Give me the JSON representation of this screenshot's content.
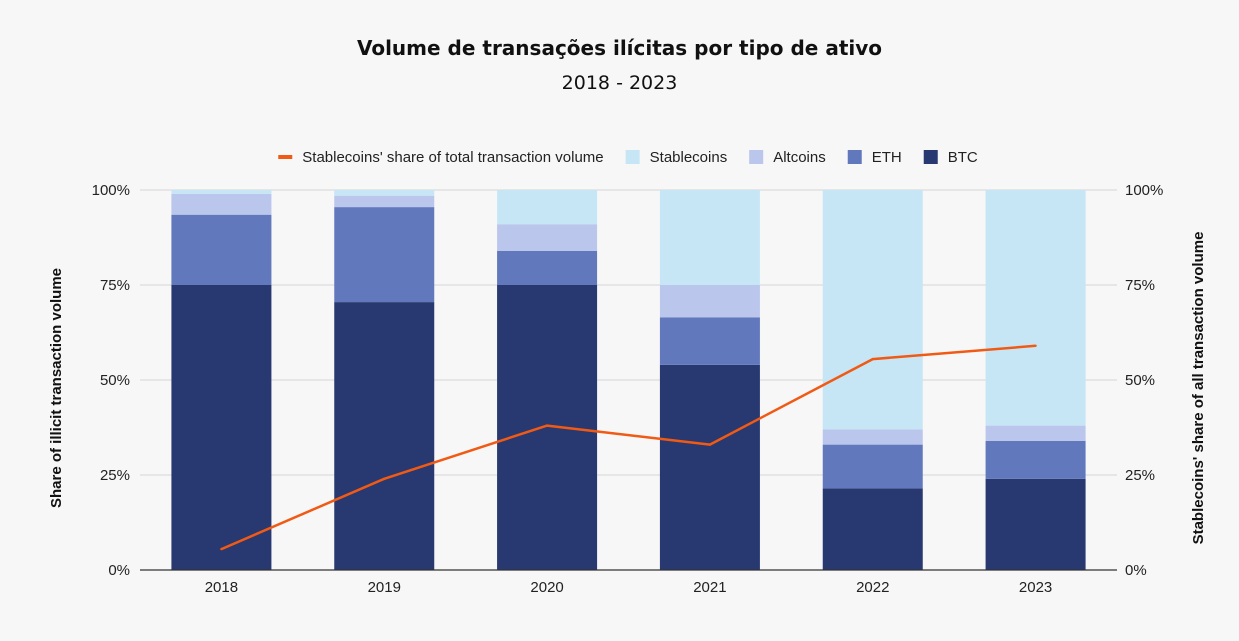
{
  "chart_data": {
    "type": "bar",
    "stacked": true,
    "title": "Volume de transações ilícitas por tipo de ativo",
    "subtitle": "2018 - 2023",
    "categories": [
      "2018",
      "2019",
      "2020",
      "2021",
      "2022",
      "2023"
    ],
    "series": [
      {
        "name": "BTC",
        "color": "#283870",
        "values": [
          75,
          70.5,
          75,
          54,
          21.5,
          24
        ]
      },
      {
        "name": "ETH",
        "color": "#6178bd",
        "values": [
          18.5,
          25,
          9,
          12.5,
          11.5,
          10
        ]
      },
      {
        "name": "Altcoins",
        "color": "#bac6ec",
        "values": [
          5.5,
          3,
          7,
          8.5,
          4,
          4
        ]
      },
      {
        "name": "Stablecoins",
        "color": "#c6e6f5",
        "values": [
          1,
          1.5,
          9,
          25,
          63,
          62
        ]
      }
    ],
    "line_series": {
      "name": "Stablecoins' share of total transaction volume",
      "color": "#f05a14",
      "axis": "right",
      "values": [
        5.5,
        24,
        38,
        33,
        55.5,
        59
      ]
    },
    "ylabel": "Share of illicit transaction volume",
    "ylabel_right": "Stablecoins' share of all transaction volume",
    "ylim": [
      0,
      100
    ],
    "yticks": [
      "0%",
      "25%",
      "50%",
      "75%",
      "100%"
    ],
    "yticks_right": [
      "0%",
      "25%",
      "50%",
      "75%",
      "100%"
    ],
    "grid": true,
    "legend_placement": "top"
  }
}
